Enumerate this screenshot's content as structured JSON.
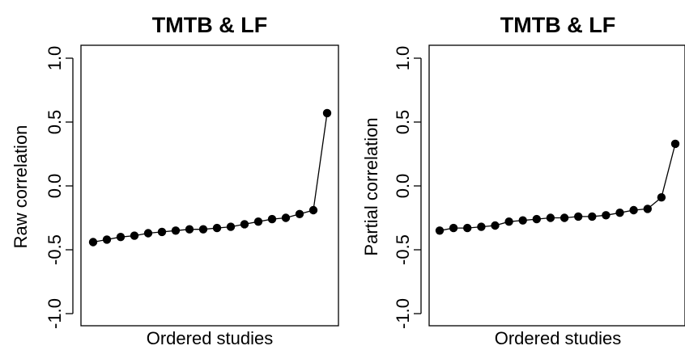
{
  "chart_data": [
    {
      "type": "line",
      "title": "TMTB & LF",
      "xlabel": "Ordered studies",
      "ylabel": "Raw correlation",
      "ylim": [
        -1.0,
        1.0
      ],
      "yticks": [
        "-1.0",
        "-0.5",
        "0.0",
        "0.5",
        "1.0"
      ],
      "xticks": [],
      "grid": false,
      "legend": "none",
      "marker": "filled-circle",
      "line_color": "#000000",
      "series": [
        {
          "values": [
            -0.44,
            -0.42,
            -0.4,
            -0.39,
            -0.37,
            -0.36,
            -0.35,
            -0.34,
            -0.34,
            -0.33,
            -0.32,
            -0.3,
            -0.28,
            -0.26,
            -0.25,
            -0.22,
            -0.19,
            0.57
          ]
        }
      ]
    },
    {
      "type": "line",
      "title": "TMTB & LF",
      "xlabel": "Ordered studies",
      "ylabel": "Partial correlation",
      "ylim": [
        -1.0,
        1.0
      ],
      "yticks": [
        "-1.0",
        "-0.5",
        "0.0",
        "0.5",
        "1.0"
      ],
      "xticks": [],
      "grid": false,
      "legend": "none",
      "marker": "filled-circle",
      "line_color": "#000000",
      "series": [
        {
          "values": [
            -0.35,
            -0.33,
            -0.33,
            -0.32,
            -0.31,
            -0.28,
            -0.27,
            -0.26,
            -0.25,
            -0.25,
            -0.24,
            -0.24,
            -0.23,
            -0.21,
            -0.19,
            -0.18,
            -0.09,
            0.33
          ]
        }
      ]
    }
  ]
}
